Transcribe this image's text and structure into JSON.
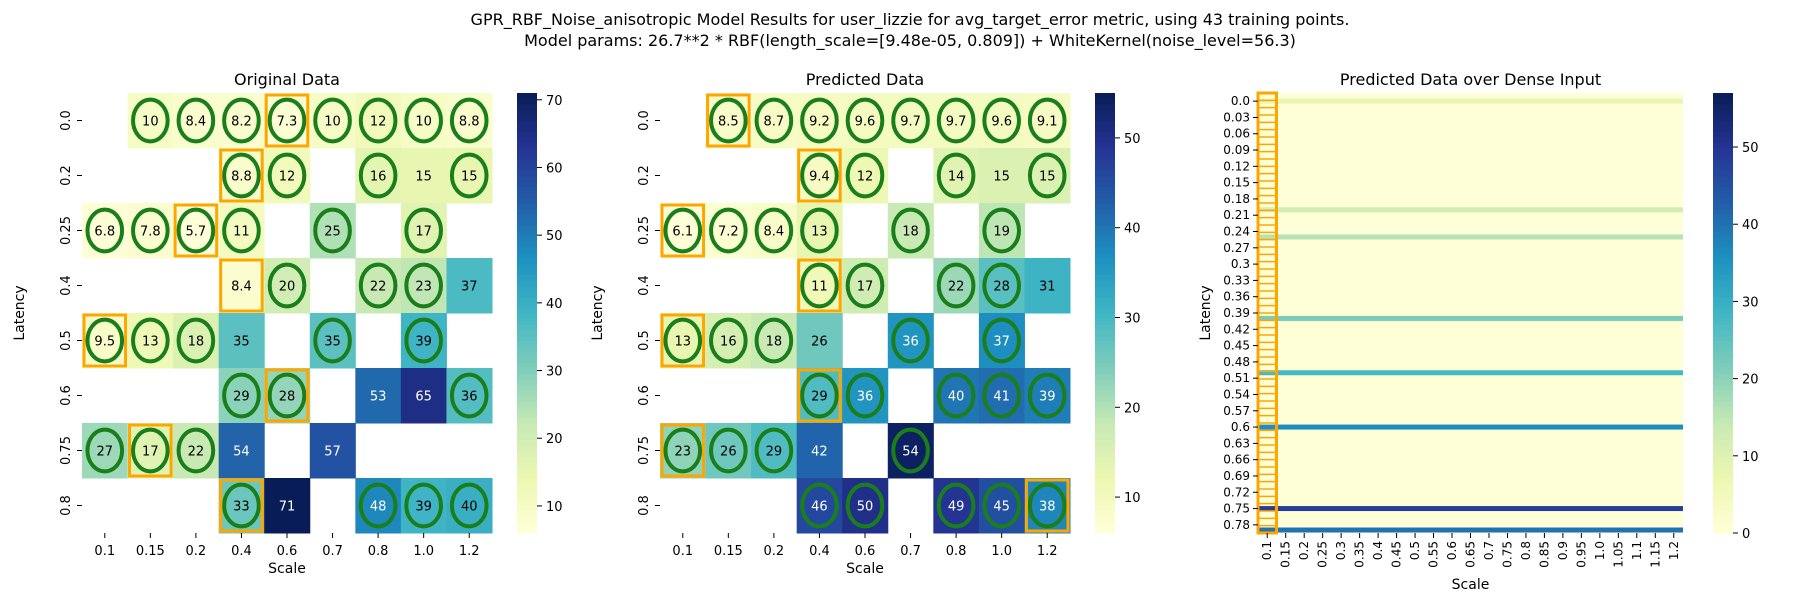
{
  "figure": {
    "title_line1": "GPR_RBF_Noise_anisotropic Model Results for user_lizzie for avg_target_error metric, using 43 training points.",
    "title_line2": "Model params: 26.7**2 * RBF(length_scale=[9.48e-05, 0.809]) + WhiteKernel(noise_level=56.3)"
  },
  "colormap": {
    "name": "YlGnBu",
    "stops": [
      "#ffffd9",
      "#edf8b1",
      "#c7e9b4",
      "#7fcdbb",
      "#41b6c4",
      "#1d91c0",
      "#225ea8",
      "#253494",
      "#081d58"
    ]
  },
  "marker_colors": {
    "circle": "#1a7f1a",
    "square": "#ffa500"
  },
  "chart_data": [
    {
      "type": "heatmap",
      "title": "Original Data",
      "xlabel": "Scale",
      "ylabel": "Latency",
      "x_categories": [
        "0.1",
        "0.15",
        "0.2",
        "0.4",
        "0.6",
        "0.7",
        "0.8",
        "1.0",
        "1.2"
      ],
      "y_categories": [
        "0.0",
        "0.2",
        "0.25",
        "0.4",
        "0.5",
        "0.6",
        "0.75",
        "0.8"
      ],
      "color_range": [
        6,
        71
      ],
      "colorbar_ticks": [
        10,
        20,
        30,
        40,
        50,
        60,
        70
      ],
      "values": [
        [
          null,
          10,
          8.4,
          8.2,
          7.3,
          10,
          12,
          10,
          8.8
        ],
        [
          null,
          null,
          null,
          8.8,
          12,
          null,
          16,
          15,
          15
        ],
        [
          6.8,
          7.8,
          5.7,
          11,
          null,
          25,
          null,
          17,
          null
        ],
        [
          null,
          null,
          null,
          8.4,
          20,
          null,
          22,
          23,
          37
        ],
        [
          9.5,
          13,
          18,
          35,
          null,
          35,
          null,
          39,
          null
        ],
        [
          null,
          null,
          null,
          29,
          28,
          null,
          53,
          65,
          36
        ],
        [
          27,
          17,
          22,
          54,
          null,
          57,
          null,
          null,
          null
        ],
        [
          null,
          null,
          null,
          33,
          71,
          null,
          48,
          39,
          40
        ]
      ],
      "circles": [
        [
          0,
          1
        ],
        [
          0,
          2
        ],
        [
          0,
          3
        ],
        [
          0,
          4
        ],
        [
          0,
          5
        ],
        [
          0,
          6
        ],
        [
          0,
          7
        ],
        [
          0,
          8
        ],
        [
          1,
          3
        ],
        [
          1,
          4
        ],
        [
          1,
          6
        ],
        [
          1,
          8
        ],
        [
          2,
          0
        ],
        [
          2,
          1
        ],
        [
          2,
          2
        ],
        [
          2,
          3
        ],
        [
          2,
          5
        ],
        [
          2,
          7
        ],
        [
          3,
          4
        ],
        [
          3,
          6
        ],
        [
          3,
          7
        ],
        [
          4,
          0
        ],
        [
          4,
          1
        ],
        [
          4,
          2
        ],
        [
          4,
          5
        ],
        [
          4,
          7
        ],
        [
          5,
          3
        ],
        [
          5,
          4
        ],
        [
          5,
          8
        ],
        [
          6,
          0
        ],
        [
          6,
          1
        ],
        [
          6,
          2
        ],
        [
          7,
          3
        ],
        [
          7,
          6
        ],
        [
          7,
          7
        ],
        [
          7,
          8
        ]
      ],
      "squares": [
        [
          0,
          4
        ],
        [
          1,
          3
        ],
        [
          2,
          2
        ],
        [
          3,
          3
        ],
        [
          4,
          0
        ],
        [
          5,
          4
        ],
        [
          6,
          1
        ],
        [
          7,
          3
        ]
      ]
    },
    {
      "type": "heatmap",
      "title": "Predicted Data",
      "xlabel": "Scale",
      "ylabel": "Latency",
      "x_categories": [
        "0.1",
        "0.15",
        "0.2",
        "0.4",
        "0.6",
        "0.7",
        "0.8",
        "1.0",
        "1.2"
      ],
      "y_categories": [
        "0.0",
        "0.2",
        "0.25",
        "0.4",
        "0.5",
        "0.6",
        "0.75",
        "0.8"
      ],
      "color_range": [
        6,
        55
      ],
      "colorbar_ticks": [
        10,
        20,
        30,
        40,
        50
      ],
      "values": [
        [
          null,
          8.5,
          8.7,
          9.2,
          9.6,
          9.7,
          9.7,
          9.6,
          9.1
        ],
        [
          null,
          null,
          null,
          9.4,
          12,
          null,
          14,
          15,
          15
        ],
        [
          6.1,
          7.2,
          8.4,
          13,
          null,
          18,
          null,
          19,
          null
        ],
        [
          null,
          null,
          null,
          11,
          17,
          null,
          22,
          28,
          31
        ],
        [
          13,
          16,
          18,
          26,
          null,
          36,
          null,
          37,
          null
        ],
        [
          null,
          null,
          null,
          29,
          36,
          null,
          40,
          41,
          39
        ],
        [
          23,
          26,
          29,
          42,
          null,
          54,
          null,
          null,
          null
        ],
        [
          null,
          null,
          null,
          46,
          50,
          null,
          49,
          45,
          38
        ]
      ],
      "circles": [
        [
          0,
          1
        ],
        [
          0,
          2
        ],
        [
          0,
          3
        ],
        [
          0,
          4
        ],
        [
          0,
          5
        ],
        [
          0,
          6
        ],
        [
          0,
          7
        ],
        [
          0,
          8
        ],
        [
          1,
          3
        ],
        [
          1,
          4
        ],
        [
          1,
          6
        ],
        [
          1,
          8
        ],
        [
          2,
          0
        ],
        [
          2,
          1
        ],
        [
          2,
          2
        ],
        [
          2,
          3
        ],
        [
          2,
          5
        ],
        [
          2,
          7
        ],
        [
          3,
          3
        ],
        [
          3,
          4
        ],
        [
          3,
          6
        ],
        [
          3,
          7
        ],
        [
          4,
          0
        ],
        [
          4,
          1
        ],
        [
          4,
          2
        ],
        [
          4,
          5
        ],
        [
          4,
          7
        ],
        [
          5,
          3
        ],
        [
          5,
          4
        ],
        [
          5,
          6
        ],
        [
          5,
          7
        ],
        [
          5,
          8
        ],
        [
          6,
          0
        ],
        [
          6,
          1
        ],
        [
          6,
          2
        ],
        [
          6,
          5
        ],
        [
          7,
          3
        ],
        [
          7,
          4
        ],
        [
          7,
          6
        ],
        [
          7,
          7
        ],
        [
          7,
          8
        ]
      ],
      "squares": [
        [
          0,
          1
        ],
        [
          1,
          3
        ],
        [
          2,
          0
        ],
        [
          3,
          3
        ],
        [
          4,
          0
        ],
        [
          5,
          3
        ],
        [
          6,
          0
        ],
        [
          7,
          8
        ]
      ]
    },
    {
      "type": "heatmap",
      "title": "Predicted Data over Dense Input",
      "xlabel": "Scale",
      "ylabel": "Latency",
      "x_categories": [
        "0.1",
        "0.15",
        "0.2",
        "0.25",
        "0.3",
        "0.35",
        "0.4",
        "0.45",
        "0.5",
        "0.55",
        "0.6",
        "0.65",
        "0.7",
        "0.75",
        "0.8",
        "0.85",
        "0.9",
        "0.95",
        "1.0",
        "1.05",
        "1.1",
        "1.15",
        "1.2"
      ],
      "y_categories": [
        "0.0",
        "0.03",
        "0.06",
        "0.09",
        "0.12",
        "0.15",
        "0.18",
        "0.21",
        "0.24",
        "0.27",
        "0.3",
        "0.33",
        "0.36",
        "0.39",
        "0.42",
        "0.45",
        "0.48",
        "0.51",
        "0.54",
        "0.57",
        "0.6",
        "0.63",
        "0.66",
        "0.69",
        "0.72",
        "0.75",
        "0.78"
      ],
      "color_range": [
        0,
        57
      ],
      "colorbar_ticks": [
        0,
        10,
        20,
        30,
        40,
        50
      ],
      "background_value": 0.5,
      "bands": [
        {
          "y": 0.0,
          "value": 8
        },
        {
          "y": 0.2,
          "value": 12
        },
        {
          "y": 0.25,
          "value": 16
        },
        {
          "y": 0.4,
          "value": 22
        },
        {
          "y": 0.5,
          "value": 28
        },
        {
          "y": 0.6,
          "value": 36
        },
        {
          "y": 0.75,
          "value": 48
        },
        {
          "y": 0.8,
          "value": 40
        }
      ],
      "marker_column": "0.1"
    }
  ]
}
